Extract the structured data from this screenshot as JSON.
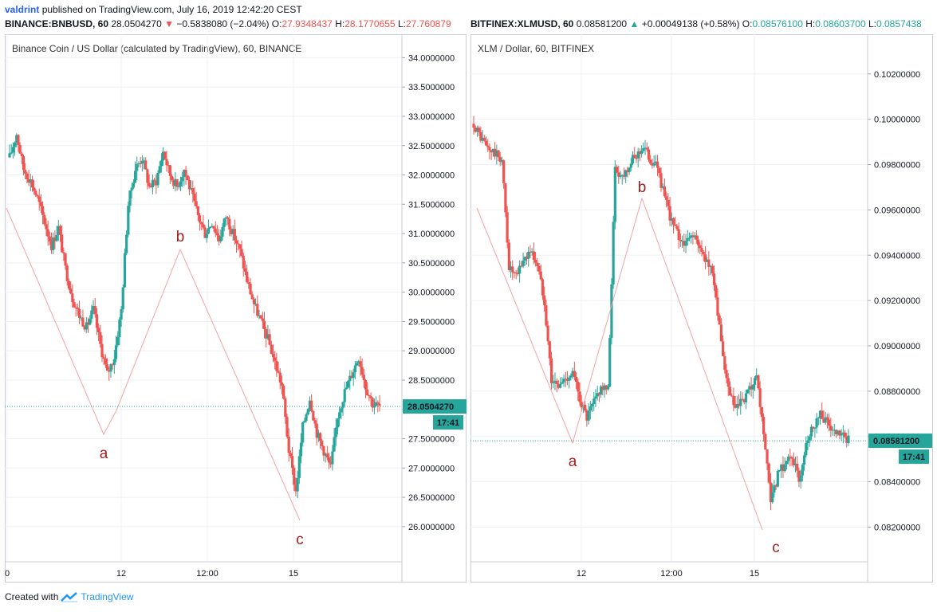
{
  "header": {
    "author": "valdrint",
    "published_text": "published on TradingView.com, July 16, 2019 12:42:20 CEST"
  },
  "footer": {
    "created_with": "Created with",
    "brand": "TradingView"
  },
  "colors": {
    "up": "#26a69a",
    "down": "#ef5350",
    "wave": "#f4a4a4",
    "wave_label": "#a41d1d",
    "price_line": "#26a69a",
    "grid": "#eef0f4",
    "logo": "#2196f3"
  },
  "chart_data": [
    {
      "type": "candlestick",
      "ticker_line": {
        "symbol": "BINANCE:BNBUSD, 60",
        "last": "28.0504270",
        "change": "−0.5838080 (−2.04%)",
        "open_label": "O:",
        "open": "27.9348437",
        "high_label": "H:",
        "high": "28.1770655",
        "low_label": "L:",
        "low": "27.760879"
      },
      "title": "Binance Coin / US Dollar (calculated by TradingView), 60, BINANCE",
      "ylim": [
        25.4,
        34.4
      ],
      "y_ticks": [
        "34.0000000",
        "33.5000000",
        "33.0000000",
        "32.5000000",
        "32.0000000",
        "31.5000000",
        "31.0000000",
        "30.5000000",
        "30.0000000",
        "29.5000000",
        "29.0000000",
        "28.5000000",
        "28.0000000",
        "27.5000000",
        "27.0000000",
        "26.5000000",
        "26.0000000"
      ],
      "x_ticks": [
        "0",
        "12",
        "12:00",
        "15"
      ],
      "current_price": "28.0504270",
      "countdown": "17:41",
      "wave_labels": [
        "a",
        "b",
        "c"
      ],
      "close_path": [
        32.3,
        32.7,
        32.1,
        31.9,
        31.6,
        31.2,
        30.8,
        31.1,
        30.4,
        29.9,
        29.6,
        29.4,
        29.7,
        29.1,
        28.6,
        28.9,
        29.7,
        31.5,
        32.1,
        32.3,
        31.8,
        31.9,
        32.4,
        32.0,
        31.8,
        32.1,
        31.7,
        31.3,
        31.0,
        31.2,
        30.9,
        31.3,
        31.0,
        30.7,
        30.2,
        29.8,
        29.5,
        29.2,
        28.8,
        28.4,
        27.3,
        26.6,
        27.7,
        28.2,
        27.6,
        27.3,
        27.0,
        27.9,
        28.3,
        28.6,
        28.9,
        28.4,
        28.1,
        28.05
      ],
      "wave_points": [
        [
          31.4
        ],
        [
          27.6
        ],
        [
          28.0
        ],
        [
          30.7
        ],
        [
          26.2
        ]
      ]
    },
    {
      "type": "candlestick",
      "ticker_line": {
        "symbol": "BITFINEX:XLMUSD, 60",
        "last": "0.08581200",
        "change": "+0.00049138 (+0.58%)",
        "open_label": "O:",
        "open": "0.08576100",
        "high_label": "H:",
        "high": "0.08603700",
        "low_label": "L:",
        "low": "0.0857438"
      },
      "title": "XLM / Dollar, 60, BITFINEX",
      "ylim": [
        0.08047,
        0.10375
      ],
      "y_ticks": [
        "0.10200000",
        "0.10000000",
        "0.09800000",
        "0.09600000",
        "0.09400000",
        "0.09200000",
        "0.09000000",
        "0.08800000",
        "0.08600000",
        "0.08400000",
        "0.08200000"
      ],
      "x_ticks": [
        "12",
        "12:00",
        "15"
      ],
      "current_price": "0.08581200",
      "countdown": "17:41",
      "wave_labels": [
        "a",
        "b",
        "c"
      ],
      "close_path": [
        0.0998,
        0.0992,
        0.0987,
        0.0985,
        0.0982,
        0.0935,
        0.093,
        0.0938,
        0.0942,
        0.0936,
        0.092,
        0.0885,
        0.0882,
        0.0886,
        0.0888,
        0.0877,
        0.0868,
        0.0875,
        0.0882,
        0.088,
        0.0978,
        0.0975,
        0.098,
        0.0984,
        0.0988,
        0.0982,
        0.0979,
        0.0965,
        0.0955,
        0.0948,
        0.0945,
        0.095,
        0.0942,
        0.0938,
        0.0929,
        0.09,
        0.088,
        0.0872,
        0.0875,
        0.088,
        0.0885,
        0.0862,
        0.083,
        0.0843,
        0.0848,
        0.0852,
        0.084,
        0.0858,
        0.0865,
        0.087,
        0.0866,
        0.0861,
        0.086,
        0.08581
      ],
      "wave_points": [
        [
          0.0955
        ],
        [
          0.0858
        ],
        [
          0.0965
        ],
        [
          0.0818
        ]
      ]
    }
  ]
}
